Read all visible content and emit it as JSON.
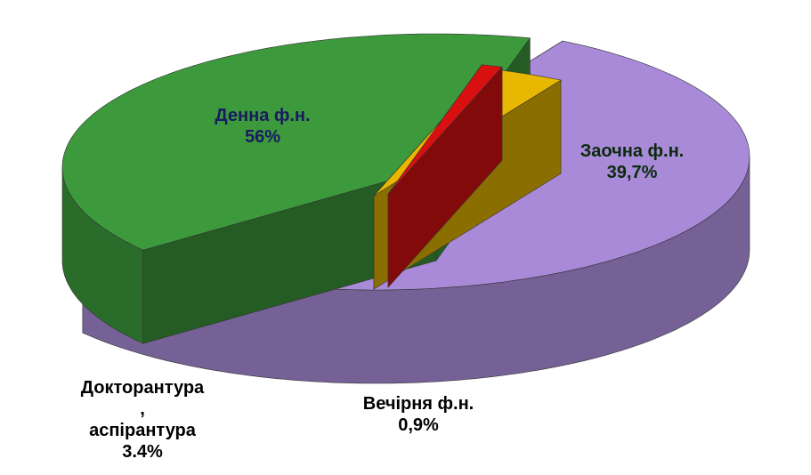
{
  "chart_data": {
    "type": "pie",
    "categories": [
      "Денна ф.н.",
      "Заочна ф.н.",
      "Вечірня ф.н.",
      "Докторантура\n,\nаспірантура"
    ],
    "values": [
      56,
      39.7,
      0.9,
      3.4
    ],
    "value_labels": [
      "56%",
      "39,7%",
      "0,9%",
      "3.4%"
    ],
    "colors": [
      "#a88ad8",
      "#3c9a3c",
      "#d81010",
      "#e8b800"
    ]
  }
}
